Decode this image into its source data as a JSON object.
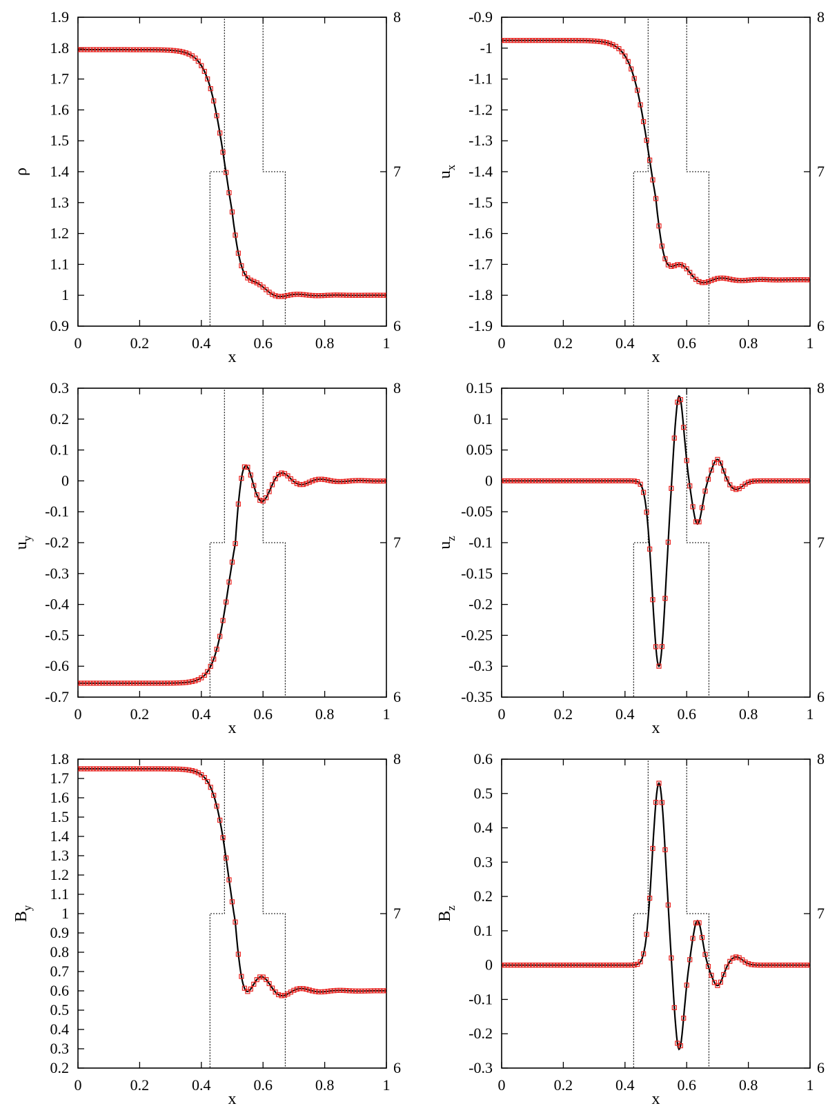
{
  "colors": {
    "exact": "#000000",
    "numeric": "#e8221e",
    "level": "#000000"
  },
  "chart_data": [
    {
      "id": "rho",
      "type": "line",
      "ylabel": "ρ",
      "ylabel_sub": "",
      "xlabel": "x",
      "xlim": [
        0,
        1
      ],
      "ylim": [
        0.9,
        1.9
      ],
      "xticks": [
        "0",
        "0.2",
        "0.4",
        "0.6",
        "0.8",
        "1"
      ],
      "yticks": [
        0.9,
        1,
        1.1,
        1.2,
        1.3,
        1.4,
        1.5,
        1.6,
        1.7,
        1.8,
        1.9
      ],
      "ytick_labels": [
        "0.9",
        "1",
        "1.1",
        "1.2",
        "1.3",
        "1.4",
        "1.5",
        "1.6",
        "1.7",
        "1.8",
        "1.9"
      ],
      "y2lim": [
        6,
        8
      ],
      "y2ticks": [
        "6",
        "7",
        "8"
      ],
      "profile": {
        "left": 1.795,
        "right": 1.0,
        "wave": 0.09,
        "center": 0.48,
        "width": 0.03
      }
    },
    {
      "id": "ux",
      "type": "line",
      "ylabel": "u",
      "ylabel_sub": "x",
      "xlabel": "x",
      "xlim": [
        0,
        1
      ],
      "ylim": [
        -1.9,
        -0.9
      ],
      "xticks": [
        "0",
        "0.2",
        "0.4",
        "0.6",
        "0.8",
        "1"
      ],
      "yticks": [
        -1.9,
        -1.8,
        -1.7,
        -1.6,
        -1.5,
        -1.4,
        -1.3,
        -1.2,
        -1.1,
        -1.0,
        -0.9
      ],
      "ytick_labels": [
        "-1.9",
        "-1.8",
        "-1.7",
        "-1.6",
        "-1.5",
        "-1.4",
        "-1.3",
        "-1.2",
        "-1.1",
        "-1",
        "-0.9"
      ],
      "y2lim": [
        6,
        8
      ],
      "y2ticks": [
        "6",
        "7",
        "8"
      ],
      "profile": {
        "left": -0.975,
        "right": -1.75,
        "wave": 0.16,
        "center": 0.48,
        "width": 0.03
      }
    },
    {
      "id": "uy",
      "type": "line",
      "ylabel": "u",
      "ylabel_sub": "y",
      "xlabel": "x",
      "xlim": [
        0,
        1
      ],
      "ylim": [
        -0.7,
        0.3
      ],
      "xticks": [
        "0",
        "0.2",
        "0.4",
        "0.6",
        "0.8",
        "1"
      ],
      "yticks": [
        -0.7,
        -0.6,
        -0.5,
        -0.4,
        -0.3,
        -0.2,
        -0.1,
        0,
        0.1,
        0.2,
        0.3
      ],
      "ytick_labels": [
        "-0.7",
        "-0.6",
        "-0.5",
        "-0.4",
        "-0.3",
        "-0.2",
        "-0.1",
        "0",
        "0.1",
        "0.2",
        "0.3"
      ],
      "y2lim": [
        6,
        8
      ],
      "y2ticks": [
        "6",
        "7",
        "8"
      ],
      "profile": {
        "left": -0.655,
        "right": 0.0,
        "wave": 0.36,
        "center": 0.49,
        "width": 0.025,
        "sign": -1
      }
    },
    {
      "id": "uz",
      "type": "line",
      "ylabel": "u",
      "ylabel_sub": "z",
      "xlabel": "x",
      "xlim": [
        0,
        1
      ],
      "ylim": [
        -0.35,
        0.15
      ],
      "xticks": [
        "0",
        "0.2",
        "0.4",
        "0.6",
        "0.8",
        "1"
      ],
      "yticks": [
        -0.35,
        -0.3,
        -0.25,
        -0.2,
        -0.15,
        -0.1,
        -0.05,
        0,
        0.05,
        0.1,
        0.15
      ],
      "ytick_labels": [
        "-0.35",
        "-0.3",
        "-0.25",
        "-0.2",
        "-0.15",
        "-0.1",
        "-0.05",
        "0",
        "0.05",
        "0.1",
        "0.15"
      ],
      "y2lim": [
        6,
        8
      ],
      "y2ticks": [
        "6",
        "7",
        "8"
      ],
      "pulse": {
        "amp": -0.3,
        "peak": 0.14,
        "neg2": -0.07,
        "tail": 0.035
      }
    },
    {
      "id": "By",
      "type": "line",
      "ylabel": "B",
      "ylabel_sub": "y",
      "xlabel": "x",
      "xlim": [
        0,
        1
      ],
      "ylim": [
        0.2,
        1.8
      ],
      "xticks": [
        "0",
        "0.2",
        "0.4",
        "0.6",
        "0.8",
        "1"
      ],
      "yticks": [
        0.2,
        0.3,
        0.4,
        0.5,
        0.6,
        0.7,
        0.8,
        0.9,
        1.0,
        1.1,
        1.2,
        1.3,
        1.4,
        1.5,
        1.6,
        1.7,
        1.8
      ],
      "ytick_labels": [
        "0.2",
        "0.3",
        "0.4",
        "0.5",
        "0.6",
        "0.7",
        "0.8",
        "0.9",
        "1",
        "1.1",
        "1.2",
        "1.3",
        "1.4",
        "1.5",
        "1.6",
        "1.7",
        "1.8"
      ],
      "y2lim": [
        6,
        8
      ],
      "y2ticks": [
        "6",
        "7",
        "8"
      ],
      "profile": {
        "left": 1.75,
        "right": 0.6,
        "wave": 0.36,
        "center": 0.49,
        "width": 0.025
      }
    },
    {
      "id": "Bz",
      "type": "line",
      "ylabel": "B",
      "ylabel_sub": "z",
      "xlabel": "x",
      "xlim": [
        0,
        1
      ],
      "ylim": [
        -0.3,
        0.6
      ],
      "xticks": [
        "0",
        "0.2",
        "0.4",
        "0.6",
        "0.8",
        "1"
      ],
      "yticks": [
        -0.3,
        -0.2,
        -0.1,
        0,
        0.1,
        0.2,
        0.3,
        0.4,
        0.5,
        0.6
      ],
      "ytick_labels": [
        "-0.3",
        "-0.2",
        "-0.1",
        "0",
        "0.1",
        "0.2",
        "0.3",
        "0.4",
        "0.5",
        "0.6"
      ],
      "y2lim": [
        6,
        8
      ],
      "y2ticks": [
        "6",
        "7",
        "8"
      ],
      "pulse": {
        "amp": 0.53,
        "peak": -0.25,
        "neg2": 0.13,
        "tail": -0.06
      }
    }
  ],
  "refinement_level": {
    "x": [
      0.0,
      0.428,
      0.428,
      0.475,
      0.475,
      0.6,
      0.6,
      0.672,
      0.672,
      1.0
    ],
    "y": [
      6,
      6,
      7,
      7,
      8,
      8,
      7,
      7,
      6,
      6
    ]
  }
}
